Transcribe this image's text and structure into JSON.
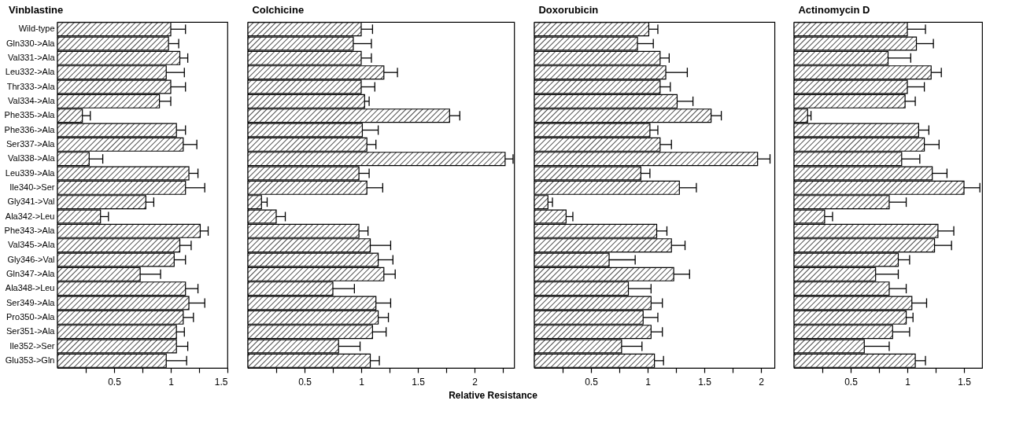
{
  "chart_data": [
    {
      "type": "bar",
      "orientation": "horizontal",
      "title": "Vinblastine",
      "color": "#000000",
      "categories": [
        "Wild-type",
        "Gln330->Ala",
        "Val331->Ala",
        "Leu332->Ala",
        "Thr333->Ala",
        "Val334->Ala",
        "Phe335->Ala",
        "Phe336->Ala",
        "Ser337->Ala",
        "Val338->Ala",
        "Leu339->Ala",
        "Ile340->Ser",
        "Gly341->Val",
        "Ala342->Leu",
        "Phe343->Ala",
        "Val345->Ala",
        "Gly346->Val",
        "Gln347->Ala",
        "Ala348->Leu",
        "Ser349->Ala",
        "Pro350->Ala",
        "Ser351->Ala",
        "Ile352->Ser",
        "Glu353->Gln"
      ],
      "values": [
        1.0,
        0.98,
        1.08,
        0.96,
        1.0,
        0.9,
        0.22,
        1.05,
        1.11,
        0.28,
        1.16,
        1.13,
        0.78,
        0.38,
        1.26,
        1.08,
        1.03,
        0.73,
        1.13,
        1.16,
        1.11,
        1.05,
        1.05,
        0.96
      ],
      "errors": [
        [
          1.0,
          1.13
        ],
        [
          0.98,
          1.07
        ],
        [
          1.08,
          1.15
        ],
        [
          0.96,
          1.12
        ],
        [
          1.0,
          1.13
        ],
        [
          0.9,
          1.0
        ],
        [
          0.22,
          0.29
        ],
        [
          1.05,
          1.13
        ],
        [
          1.11,
          1.23
        ],
        [
          0.28,
          0.4
        ],
        [
          1.16,
          1.24
        ],
        [
          1.13,
          1.3
        ],
        [
          0.78,
          0.85
        ],
        [
          0.38,
          0.45
        ],
        [
          1.26,
          1.33
        ],
        [
          1.08,
          1.18
        ],
        [
          1.03,
          1.13
        ],
        [
          0.73,
          0.91
        ],
        [
          1.13,
          1.24
        ],
        [
          1.16,
          1.3
        ],
        [
          1.11,
          1.2
        ],
        [
          1.05,
          1.12
        ],
        [
          1.05,
          1.15
        ],
        [
          0.96,
          1.14
        ]
      ],
      "xlim": [
        0,
        1.5
      ],
      "xticks": [
        {
          "value": 0.25,
          "label": null
        },
        0.5,
        {
          "value": 0.75,
          "label": null
        },
        1,
        {
          "value": 1.25,
          "label": null
        },
        1.5
      ],
      "grid": false
    },
    {
      "type": "bar",
      "orientation": "horizontal",
      "title": "Colchicine",
      "xlabel": "Relative Resistance",
      "color": "#000000",
      "categories": [
        null,
        null,
        null,
        null,
        null,
        null,
        null,
        null,
        null,
        null,
        null,
        null,
        null,
        null,
        null,
        null,
        null,
        null,
        null,
        null,
        null,
        null,
        null,
        null
      ],
      "values": [
        1.0,
        0.93,
        1.0,
        1.2,
        1.0,
        1.03,
        1.78,
        1.01,
        1.05,
        2.27,
        0.98,
        1.05,
        0.12,
        0.25,
        0.98,
        1.08,
        1.15,
        1.2,
        0.75,
        1.13,
        1.15,
        1.1,
        0.8,
        1.08
      ],
      "errors": [
        [
          1.0,
          1.1
        ],
        [
          0.93,
          1.09
        ],
        [
          1.0,
          1.09
        ],
        [
          1.2,
          1.32
        ],
        [
          1.0,
          1.12
        ],
        [
          1.03,
          1.07
        ],
        [
          1.78,
          1.87
        ],
        [
          1.01,
          1.15
        ],
        [
          1.05,
          1.13
        ],
        [
          2.27,
          2.34
        ],
        [
          0.98,
          1.07
        ],
        [
          1.05,
          1.19
        ],
        [
          0.12,
          0.17
        ],
        [
          0.25,
          0.33
        ],
        [
          0.98,
          1.06
        ],
        [
          1.08,
          1.26
        ],
        [
          1.15,
          1.28
        ],
        [
          1.2,
          1.3
        ],
        [
          0.75,
          0.94
        ],
        [
          1.13,
          1.26
        ],
        [
          1.15,
          1.24
        ],
        [
          1.1,
          1.22
        ],
        [
          0.8,
          0.99
        ],
        [
          1.08,
          1.16
        ]
      ],
      "xlim": [
        0,
        2.35
      ],
      "xticks": [
        {
          "value": 0.25,
          "label": null
        },
        0.5,
        {
          "value": 0.75,
          "label": null
        },
        1,
        {
          "value": 1.25,
          "label": null
        },
        1.5,
        {
          "value": 1.75,
          "label": null
        },
        2,
        {
          "value": 2.25,
          "label": null
        }
      ],
      "tick_labels": "x",
      "grid": false
    },
    {
      "type": "bar",
      "orientation": "horizontal",
      "title": "Doxorubicin",
      "color": "#000000",
      "categories": [
        null,
        null,
        null,
        null,
        null,
        null,
        null,
        null,
        null,
        null,
        null,
        null,
        null,
        null,
        null,
        null,
        null,
        null,
        null,
        null,
        null,
        null,
        null,
        null
      ],
      "values": [
        1.01,
        0.91,
        1.11,
        1.16,
        1.11,
        1.26,
        1.56,
        1.02,
        1.11,
        1.97,
        0.94,
        1.28,
        0.12,
        0.28,
        1.08,
        1.21,
        0.66,
        1.23,
        0.83,
        1.03,
        0.96,
        1.03,
        0.77,
        1.06
      ],
      "errors": [
        [
          1.01,
          1.09
        ],
        [
          0.91,
          1.05
        ],
        [
          1.11,
          1.19
        ],
        [
          1.16,
          1.35
        ],
        [
          1.11,
          1.2
        ],
        [
          1.26,
          1.4
        ],
        [
          1.56,
          1.65
        ],
        [
          1.02,
          1.09
        ],
        [
          1.11,
          1.21
        ],
        [
          1.97,
          2.08
        ],
        [
          0.94,
          1.02
        ],
        [
          1.28,
          1.43
        ],
        [
          0.12,
          0.16
        ],
        [
          0.28,
          0.34
        ],
        [
          1.08,
          1.17
        ],
        [
          1.21,
          1.33
        ],
        [
          0.66,
          0.89
        ],
        [
          1.23,
          1.37
        ],
        [
          0.83,
          1.03
        ],
        [
          1.03,
          1.13
        ],
        [
          0.96,
          1.09
        ],
        [
          1.03,
          1.13
        ],
        [
          0.77,
          0.95
        ],
        [
          1.06,
          1.14
        ]
      ],
      "xlim": [
        0,
        2.12
      ],
      "xticks": [
        {
          "value": 0.25,
          "label": null
        },
        0.5,
        {
          "value": 0.75,
          "label": null
        },
        1,
        {
          "value": 1.25,
          "label": null
        },
        1.5,
        {
          "value": 1.75,
          "label": null
        },
        2
      ],
      "tick_labels": "x",
      "grid": false
    },
    {
      "type": "bar",
      "orientation": "horizontal",
      "title": "Actinomycin D",
      "color": "#000000",
      "categories": [
        null,
        null,
        null,
        null,
        null,
        null,
        null,
        null,
        null,
        null,
        null,
        null,
        null,
        null,
        null,
        null,
        null,
        null,
        null,
        null,
        null,
        null,
        null,
        null
      ],
      "values": [
        1.0,
        1.08,
        0.83,
        1.21,
        1.0,
        0.98,
        0.12,
        1.1,
        1.15,
        0.95,
        1.22,
        1.5,
        0.84,
        0.27,
        1.27,
        1.24,
        0.92,
        0.72,
        0.84,
        1.04,
        0.99,
        0.87,
        0.62,
        1.07
      ],
      "errors": [
        [
          1.0,
          1.16
        ],
        [
          1.08,
          1.23
        ],
        [
          0.83,
          1.03
        ],
        [
          1.21,
          1.3
        ],
        [
          1.0,
          1.15
        ],
        [
          0.98,
          1.07
        ],
        [
          0.12,
          0.15
        ],
        [
          1.1,
          1.19
        ],
        [
          1.15,
          1.28
        ],
        [
          0.95,
          1.11
        ],
        [
          1.22,
          1.35
        ],
        [
          1.5,
          1.64
        ],
        [
          0.84,
          0.99
        ],
        [
          0.27,
          0.34
        ],
        [
          1.27,
          1.41
        ],
        [
          1.24,
          1.39
        ],
        [
          0.92,
          1.02
        ],
        [
          0.72,
          0.92
        ],
        [
          0.84,
          0.99
        ],
        [
          1.04,
          1.17
        ],
        [
          0.99,
          1.05
        ],
        [
          0.87,
          1.02
        ],
        [
          0.62,
          0.84
        ],
        [
          1.07,
          1.16
        ]
      ],
      "xlim": [
        0,
        1.66
      ],
      "xticks": [
        {
          "value": 0.25,
          "label": null
        },
        0.5,
        {
          "value": 0.75,
          "label": null
        },
        1,
        {
          "value": 1.25,
          "label": null
        },
        1.5
      ],
      "tick_labels": "x",
      "grid": false
    }
  ]
}
